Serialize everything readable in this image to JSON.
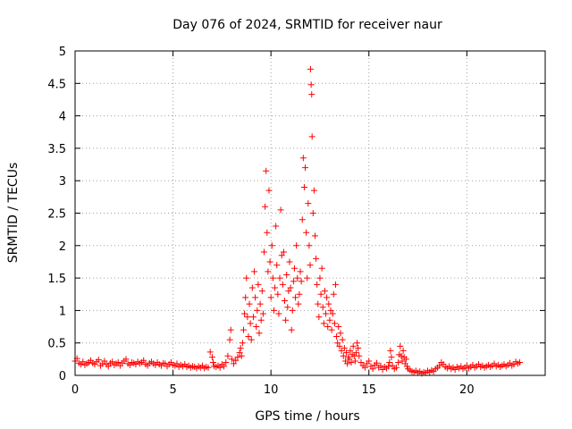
{
  "chart_data": {
    "type": "scatter",
    "title": "Day 076 of 2024, SRMTID for receiver naur",
    "xlabel": "GPS time / hours",
    "ylabel": "SRMTID / TECUs",
    "xlim": [
      0,
      24
    ],
    "ylim": [
      0,
      5
    ],
    "xticks": [
      0,
      5,
      10,
      15,
      20
    ],
    "xtick_labels": [
      "0",
      "5",
      "10",
      "15",
      "20"
    ],
    "yticks": [
      0,
      0.5,
      1,
      1.5,
      2,
      2.5,
      3,
      3.5,
      4,
      4.5,
      5
    ],
    "ytick_labels": [
      "0",
      "0.5",
      "1",
      "1.5",
      "2",
      "2.5",
      "3",
      "3.5",
      "4",
      "4.5",
      "5"
    ],
    "grid": true,
    "marker": "+",
    "color": "#ff0000",
    "series": [
      {
        "name": "SRMTID",
        "points": [
          [
            0.0,
            0.22
          ],
          [
            0.1,
            0.26
          ],
          [
            0.2,
            0.19
          ],
          [
            0.3,
            0.17
          ],
          [
            0.4,
            0.21
          ],
          [
            0.5,
            0.16
          ],
          [
            0.6,
            0.18
          ],
          [
            0.7,
            0.2
          ],
          [
            0.8,
            0.23
          ],
          [
            0.9,
            0.19
          ],
          [
            1.0,
            0.17
          ],
          [
            1.1,
            0.21
          ],
          [
            1.2,
            0.24
          ],
          [
            1.3,
            0.15
          ],
          [
            1.4,
            0.18
          ],
          [
            1.5,
            0.22
          ],
          [
            1.6,
            0.17
          ],
          [
            1.7,
            0.14
          ],
          [
            1.8,
            0.19
          ],
          [
            1.9,
            0.21
          ],
          [
            2.0,
            0.16
          ],
          [
            2.1,
            0.18
          ],
          [
            2.2,
            0.2
          ],
          [
            2.3,
            0.15
          ],
          [
            2.4,
            0.19
          ],
          [
            2.5,
            0.22
          ],
          [
            2.6,
            0.25
          ],
          [
            2.7,
            0.18
          ],
          [
            2.8,
            0.16
          ],
          [
            2.9,
            0.2
          ],
          [
            3.0,
            0.19
          ],
          [
            3.1,
            0.17
          ],
          [
            3.2,
            0.21
          ],
          [
            3.3,
            0.18
          ],
          [
            3.4,
            0.2
          ],
          [
            3.5,
            0.23
          ],
          [
            3.6,
            0.17
          ],
          [
            3.7,
            0.15
          ],
          [
            3.8,
            0.19
          ],
          [
            3.9,
            0.21
          ],
          [
            4.0,
            0.18
          ],
          [
            4.1,
            0.16
          ],
          [
            4.2,
            0.2
          ],
          [
            4.3,
            0.17
          ],
          [
            4.4,
            0.15
          ],
          [
            4.5,
            0.19
          ],
          [
            4.6,
            0.18
          ],
          [
            4.7,
            0.14
          ],
          [
            4.8,
            0.17
          ],
          [
            4.9,
            0.2
          ],
          [
            5.0,
            0.16
          ],
          [
            5.1,
            0.15
          ],
          [
            5.2,
            0.18
          ],
          [
            5.3,
            0.13
          ],
          [
            5.4,
            0.16
          ],
          [
            5.5,
            0.14
          ],
          [
            5.6,
            0.17
          ],
          [
            5.7,
            0.13
          ],
          [
            5.8,
            0.15
          ],
          [
            5.9,
            0.12
          ],
          [
            6.0,
            0.14
          ],
          [
            6.1,
            0.13
          ],
          [
            6.2,
            0.11
          ],
          [
            6.3,
            0.14
          ],
          [
            6.4,
            0.12
          ],
          [
            6.5,
            0.15
          ],
          [
            6.6,
            0.11
          ],
          [
            6.7,
            0.13
          ],
          [
            6.8,
            0.12
          ],
          [
            6.9,
            0.36
          ],
          [
            7.0,
            0.28
          ],
          [
            7.05,
            0.2
          ],
          [
            7.1,
            0.14
          ],
          [
            7.2,
            0.13
          ],
          [
            7.3,
            0.15
          ],
          [
            7.4,
            0.12
          ],
          [
            7.5,
            0.17
          ],
          [
            7.6,
            0.14
          ],
          [
            7.7,
            0.2
          ],
          [
            7.8,
            0.3
          ],
          [
            7.9,
            0.55
          ],
          [
            7.95,
            0.7
          ],
          [
            8.0,
            0.25
          ],
          [
            8.1,
            0.18
          ],
          [
            8.2,
            0.23
          ],
          [
            8.3,
            0.28
          ],
          [
            8.4,
            0.35
          ],
          [
            8.45,
            0.42
          ],
          [
            8.5,
            0.3
          ],
          [
            8.55,
            0.5
          ],
          [
            8.6,
            0.7
          ],
          [
            8.65,
            0.95
          ],
          [
            8.7,
            1.2
          ],
          [
            8.75,
            1.5
          ],
          [
            8.8,
            0.9
          ],
          [
            8.85,
            0.6
          ],
          [
            8.9,
            1.1
          ],
          [
            8.95,
            0.8
          ],
          [
            9.0,
            0.55
          ],
          [
            9.05,
            1.35
          ],
          [
            9.1,
            0.9
          ],
          [
            9.15,
            1.6
          ],
          [
            9.2,
            1.2
          ],
          [
            9.25,
            0.75
          ],
          [
            9.3,
            1.0
          ],
          [
            9.35,
            1.4
          ],
          [
            9.4,
            0.65
          ],
          [
            9.45,
            1.1
          ],
          [
            9.5,
            0.85
          ],
          [
            9.55,
            1.3
          ],
          [
            9.6,
            0.95
          ],
          [
            9.65,
            1.9
          ],
          [
            9.7,
            2.6
          ],
          [
            9.75,
            3.15
          ],
          [
            9.8,
            2.2
          ],
          [
            9.85,
            1.6
          ],
          [
            9.9,
            2.85
          ],
          [
            9.95,
            1.75
          ],
          [
            10.0,
            1.2
          ],
          [
            10.05,
            2.0
          ],
          [
            10.1,
            1.5
          ],
          [
            10.15,
            1.0
          ],
          [
            10.2,
            1.35
          ],
          [
            10.25,
            2.3
          ],
          [
            10.3,
            1.7
          ],
          [
            10.35,
            1.25
          ],
          [
            10.4,
            0.95
          ],
          [
            10.45,
            1.5
          ],
          [
            10.5,
            2.55
          ],
          [
            10.55,
            1.85
          ],
          [
            10.6,
            1.4
          ],
          [
            10.65,
            1.9
          ],
          [
            10.7,
            1.15
          ],
          [
            10.75,
            0.85
          ],
          [
            10.8,
            1.55
          ],
          [
            10.85,
            1.05
          ],
          [
            10.9,
            1.3
          ],
          [
            10.95,
            1.75
          ],
          [
            11.0,
            1.35
          ],
          [
            11.05,
            0.7
          ],
          [
            11.1,
            1.0
          ],
          [
            11.15,
            1.45
          ],
          [
            11.2,
            1.65
          ],
          [
            11.25,
            1.2
          ],
          [
            11.3,
            2.0
          ],
          [
            11.35,
            1.5
          ],
          [
            11.4,
            1.1
          ],
          [
            11.45,
            1.25
          ],
          [
            11.5,
            1.6
          ],
          [
            11.55,
            1.45
          ],
          [
            11.6,
            2.4
          ],
          [
            11.65,
            3.35
          ],
          [
            11.7,
            2.9
          ],
          [
            11.75,
            3.2
          ],
          [
            11.8,
            2.2
          ],
          [
            11.85,
            1.5
          ],
          [
            11.9,
            2.65
          ],
          [
            11.95,
            2.0
          ],
          [
            12.0,
            1.7
          ],
          [
            12.02,
            4.72
          ],
          [
            12.05,
            4.48
          ],
          [
            12.08,
            4.33
          ],
          [
            12.1,
            3.68
          ],
          [
            12.15,
            2.5
          ],
          [
            12.2,
            2.85
          ],
          [
            12.25,
            2.15
          ],
          [
            12.3,
            1.8
          ],
          [
            12.35,
            1.4
          ],
          [
            12.4,
            1.1
          ],
          [
            12.45,
            0.9
          ],
          [
            12.5,
            1.5
          ],
          [
            12.55,
            1.25
          ],
          [
            12.6,
            1.65
          ],
          [
            12.65,
            1.05
          ],
          [
            12.7,
            0.8
          ],
          [
            12.75,
            1.3
          ],
          [
            12.8,
            0.95
          ],
          [
            12.85,
            1.2
          ],
          [
            12.9,
            0.75
          ],
          [
            12.95,
            1.1
          ],
          [
            13.0,
            0.85
          ],
          [
            13.05,
            1.0
          ],
          [
            13.1,
            0.7
          ],
          [
            13.15,
            0.95
          ],
          [
            13.2,
            1.25
          ],
          [
            13.25,
            0.8
          ],
          [
            13.3,
            1.4
          ],
          [
            13.35,
            0.6
          ],
          [
            13.4,
            0.5
          ],
          [
            13.45,
            0.75
          ],
          [
            13.5,
            0.45
          ],
          [
            13.55,
            0.65
          ],
          [
            13.6,
            0.38
          ],
          [
            13.65,
            0.55
          ],
          [
            13.7,
            0.3
          ],
          [
            13.75,
            0.42
          ],
          [
            13.8,
            0.22
          ],
          [
            13.85,
            0.35
          ],
          [
            13.9,
            0.18
          ],
          [
            13.95,
            0.28
          ],
          [
            14.0,
            0.25
          ],
          [
            14.05,
            0.38
          ],
          [
            14.1,
            0.2
          ],
          [
            14.15,
            0.32
          ],
          [
            14.2,
            0.45
          ],
          [
            14.25,
            0.3
          ],
          [
            14.3,
            0.22
          ],
          [
            14.35,
            0.35
          ],
          [
            14.4,
            0.5
          ],
          [
            14.45,
            0.42
          ],
          [
            14.5,
            0.3
          ],
          [
            14.6,
            0.2
          ],
          [
            14.7,
            0.15
          ],
          [
            14.8,
            0.12
          ],
          [
            14.9,
            0.18
          ],
          [
            15.0,
            0.22
          ],
          [
            15.1,
            0.14
          ],
          [
            15.2,
            0.1
          ],
          [
            15.3,
            0.16
          ],
          [
            15.4,
            0.19
          ],
          [
            15.5,
            0.12
          ],
          [
            15.6,
            0.15
          ],
          [
            15.7,
            0.09
          ],
          [
            15.8,
            0.13
          ],
          [
            15.9,
            0.11
          ],
          [
            16.0,
            0.14
          ],
          [
            16.05,
            0.2
          ],
          [
            16.1,
            0.38
          ],
          [
            16.15,
            0.28
          ],
          [
            16.2,
            0.15
          ],
          [
            16.3,
            0.1
          ],
          [
            16.4,
            0.12
          ],
          [
            16.5,
            0.2
          ],
          [
            16.55,
            0.32
          ],
          [
            16.6,
            0.45
          ],
          [
            16.65,
            0.3
          ],
          [
            16.7,
            0.22
          ],
          [
            16.75,
            0.38
          ],
          [
            16.8,
            0.28
          ],
          [
            16.85,
            0.18
          ],
          [
            16.9,
            0.25
          ],
          [
            16.95,
            0.14
          ],
          [
            17.0,
            0.1
          ],
          [
            17.1,
            0.08
          ],
          [
            17.2,
            0.06
          ],
          [
            17.3,
            0.05
          ],
          [
            17.4,
            0.07
          ],
          [
            17.5,
            0.04
          ],
          [
            17.6,
            0.06
          ],
          [
            17.7,
            0.03
          ],
          [
            17.8,
            0.05
          ],
          [
            17.9,
            0.04
          ],
          [
            18.0,
            0.07
          ],
          [
            18.1,
            0.05
          ],
          [
            18.2,
            0.08
          ],
          [
            18.3,
            0.06
          ],
          [
            18.4,
            0.1
          ],
          [
            18.5,
            0.12
          ],
          [
            18.6,
            0.15
          ],
          [
            18.7,
            0.2
          ],
          [
            18.8,
            0.17
          ],
          [
            18.9,
            0.13
          ],
          [
            19.0,
            0.11
          ],
          [
            19.1,
            0.14
          ],
          [
            19.2,
            0.1
          ],
          [
            19.3,
            0.12
          ],
          [
            19.4,
            0.09
          ],
          [
            19.5,
            0.13
          ],
          [
            19.6,
            0.11
          ],
          [
            19.7,
            0.14
          ],
          [
            19.8,
            0.1
          ],
          [
            19.9,
            0.12
          ],
          [
            20.0,
            0.15
          ],
          [
            20.1,
            0.11
          ],
          [
            20.2,
            0.13
          ],
          [
            20.3,
            0.16
          ],
          [
            20.4,
            0.12
          ],
          [
            20.5,
            0.14
          ],
          [
            20.6,
            0.17
          ],
          [
            20.7,
            0.13
          ],
          [
            20.8,
            0.15
          ],
          [
            20.9,
            0.12
          ],
          [
            21.0,
            0.14
          ],
          [
            21.1,
            0.16
          ],
          [
            21.2,
            0.13
          ],
          [
            21.3,
            0.15
          ],
          [
            21.4,
            0.18
          ],
          [
            21.5,
            0.14
          ],
          [
            21.6,
            0.16
          ],
          [
            21.7,
            0.13
          ],
          [
            21.8,
            0.15
          ],
          [
            21.9,
            0.17
          ],
          [
            22.0,
            0.14
          ],
          [
            22.1,
            0.16
          ],
          [
            22.2,
            0.19
          ],
          [
            22.3,
            0.15
          ],
          [
            22.4,
            0.17
          ],
          [
            22.5,
            0.21
          ],
          [
            22.6,
            0.18
          ],
          [
            22.7,
            0.2
          ]
        ]
      }
    ]
  }
}
